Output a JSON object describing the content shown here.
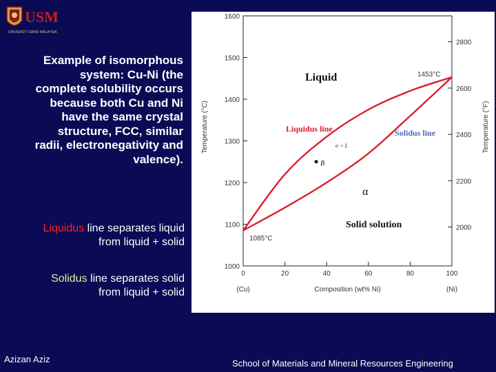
{
  "logo": {
    "letters": "USM",
    "caption": "UNIVERSITI SAINS MALAYSIA"
  },
  "intro_lines": [
    "Example of isomorphous",
    "system: Cu-Ni (the",
    "complete solubility occurs",
    "because both Cu and Ni",
    "have the same crystal",
    "structure, FCC, similar",
    "radii, electronegativity and",
    "valence)."
  ],
  "liquidus_note": {
    "keyword": "Liquidus",
    "line1_rest": " line separates liquid",
    "line2": "from liquid + solid"
  },
  "solidus_note": {
    "keyword": "Solidus",
    "line1_rest": " line separates solid",
    "line2": "from liquid + solid"
  },
  "footer": {
    "author": "Azizan Aziz",
    "school": "School of Materials and Mineral Resources Engineering"
  },
  "colors": {
    "background": "#0a0a55",
    "curve": "#d8202a",
    "solidus_label": "#5568c0",
    "liquidus_label": "#d8202a"
  },
  "chart_data": {
    "type": "line",
    "xlabel": "Composition (wt% Ni)",
    "ylabel": "Temperature (°C)",
    "ylabel_right": "Temperature (°F)",
    "xlim": [
      0,
      100
    ],
    "ylim": [
      1000,
      1600
    ],
    "x_ticks": [
      "0",
      "20",
      "40",
      "60",
      "80",
      "100"
    ],
    "x_end_labels": [
      "(Cu)",
      "(Ni)"
    ],
    "y_ticks": [
      "1000",
      "1100",
      "1200",
      "1300",
      "1400",
      "1500",
      "1600"
    ],
    "y_right_ticks": [
      "2000",
      "2200",
      "2400",
      "2600",
      "2800"
    ],
    "y_right_values_f": [
      2000,
      2200,
      2400,
      2600,
      2800
    ],
    "series": [
      {
        "name": "Liquidus line",
        "x": [
          0,
          20,
          40,
          60,
          80,
          100
        ],
        "y": [
          1085,
          1220,
          1310,
          1375,
          1420,
          1453
        ]
      },
      {
        "name": "Solidus line",
        "x": [
          0,
          20,
          40,
          60,
          80,
          100
        ],
        "y": [
          1085,
          1140,
          1200,
          1270,
          1360,
          1453
        ]
      }
    ],
    "annotations": {
      "cu_melting": "1085°C",
      "ni_melting": "1453°C",
      "liquid": "Liquid",
      "alpha": "α",
      "solid_solution": "Solid solution",
      "two_phase": "α + L",
      "point": "B"
    },
    "point_B": {
      "x": 35,
      "y": 1250
    }
  }
}
